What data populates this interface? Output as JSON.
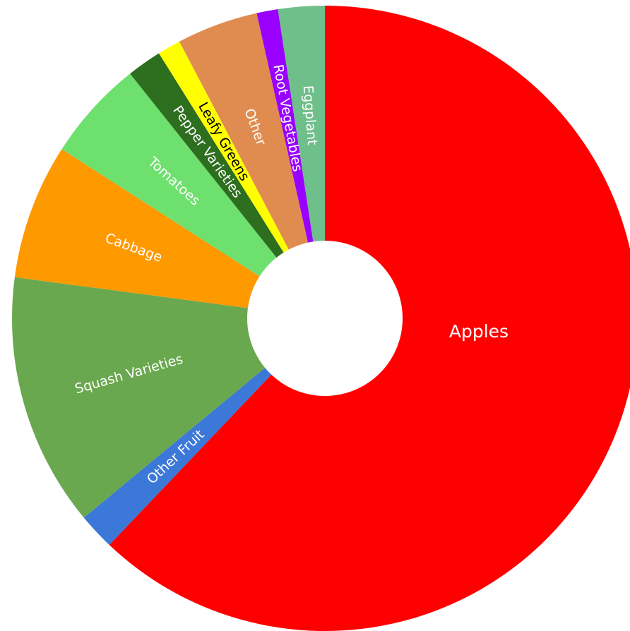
{
  "chart_data": {
    "type": "pie",
    "donut": true,
    "title": "",
    "legend": "none",
    "slices": [
      {
        "label": "Apples",
        "value": 62.1,
        "color": "#ff0000",
        "text_color": "#ffffff"
      },
      {
        "label": "Other Fruit",
        "value": 1.9,
        "color": "#3c78d8",
        "text_color": "#ffffff"
      },
      {
        "label": "Squash Varieties",
        "value": 13.1,
        "color": "#6aa84f",
        "text_color": "#ffffff"
      },
      {
        "label": "Cabbage",
        "value": 7.0,
        "color": "#ff9900",
        "text_color": "#ffffff"
      },
      {
        "label": "Tomatoes",
        "value": 5.2,
        "color": "#6ee06e",
        "text_color": "#ffffff"
      },
      {
        "label": "Pepper Varieties",
        "value": 1.8,
        "color": "#2d6e1f",
        "text_color": "#ffffff"
      },
      {
        "label": "Leafy Greens",
        "value": 1.2,
        "color": "#ffff00",
        "text_color": "#000000"
      },
      {
        "label": "Other",
        "value": 4.2,
        "color": "#e08c50",
        "text_color": "#ffffff"
      },
      {
        "label": "Root Vegetables",
        "value": 1.1,
        "color": "#9900ff",
        "text_color": "#ffffff"
      },
      {
        "label": "Eggplant",
        "value": 2.4,
        "color": "#6fbf8a",
        "text_color": "#ffffff"
      }
    ]
  }
}
